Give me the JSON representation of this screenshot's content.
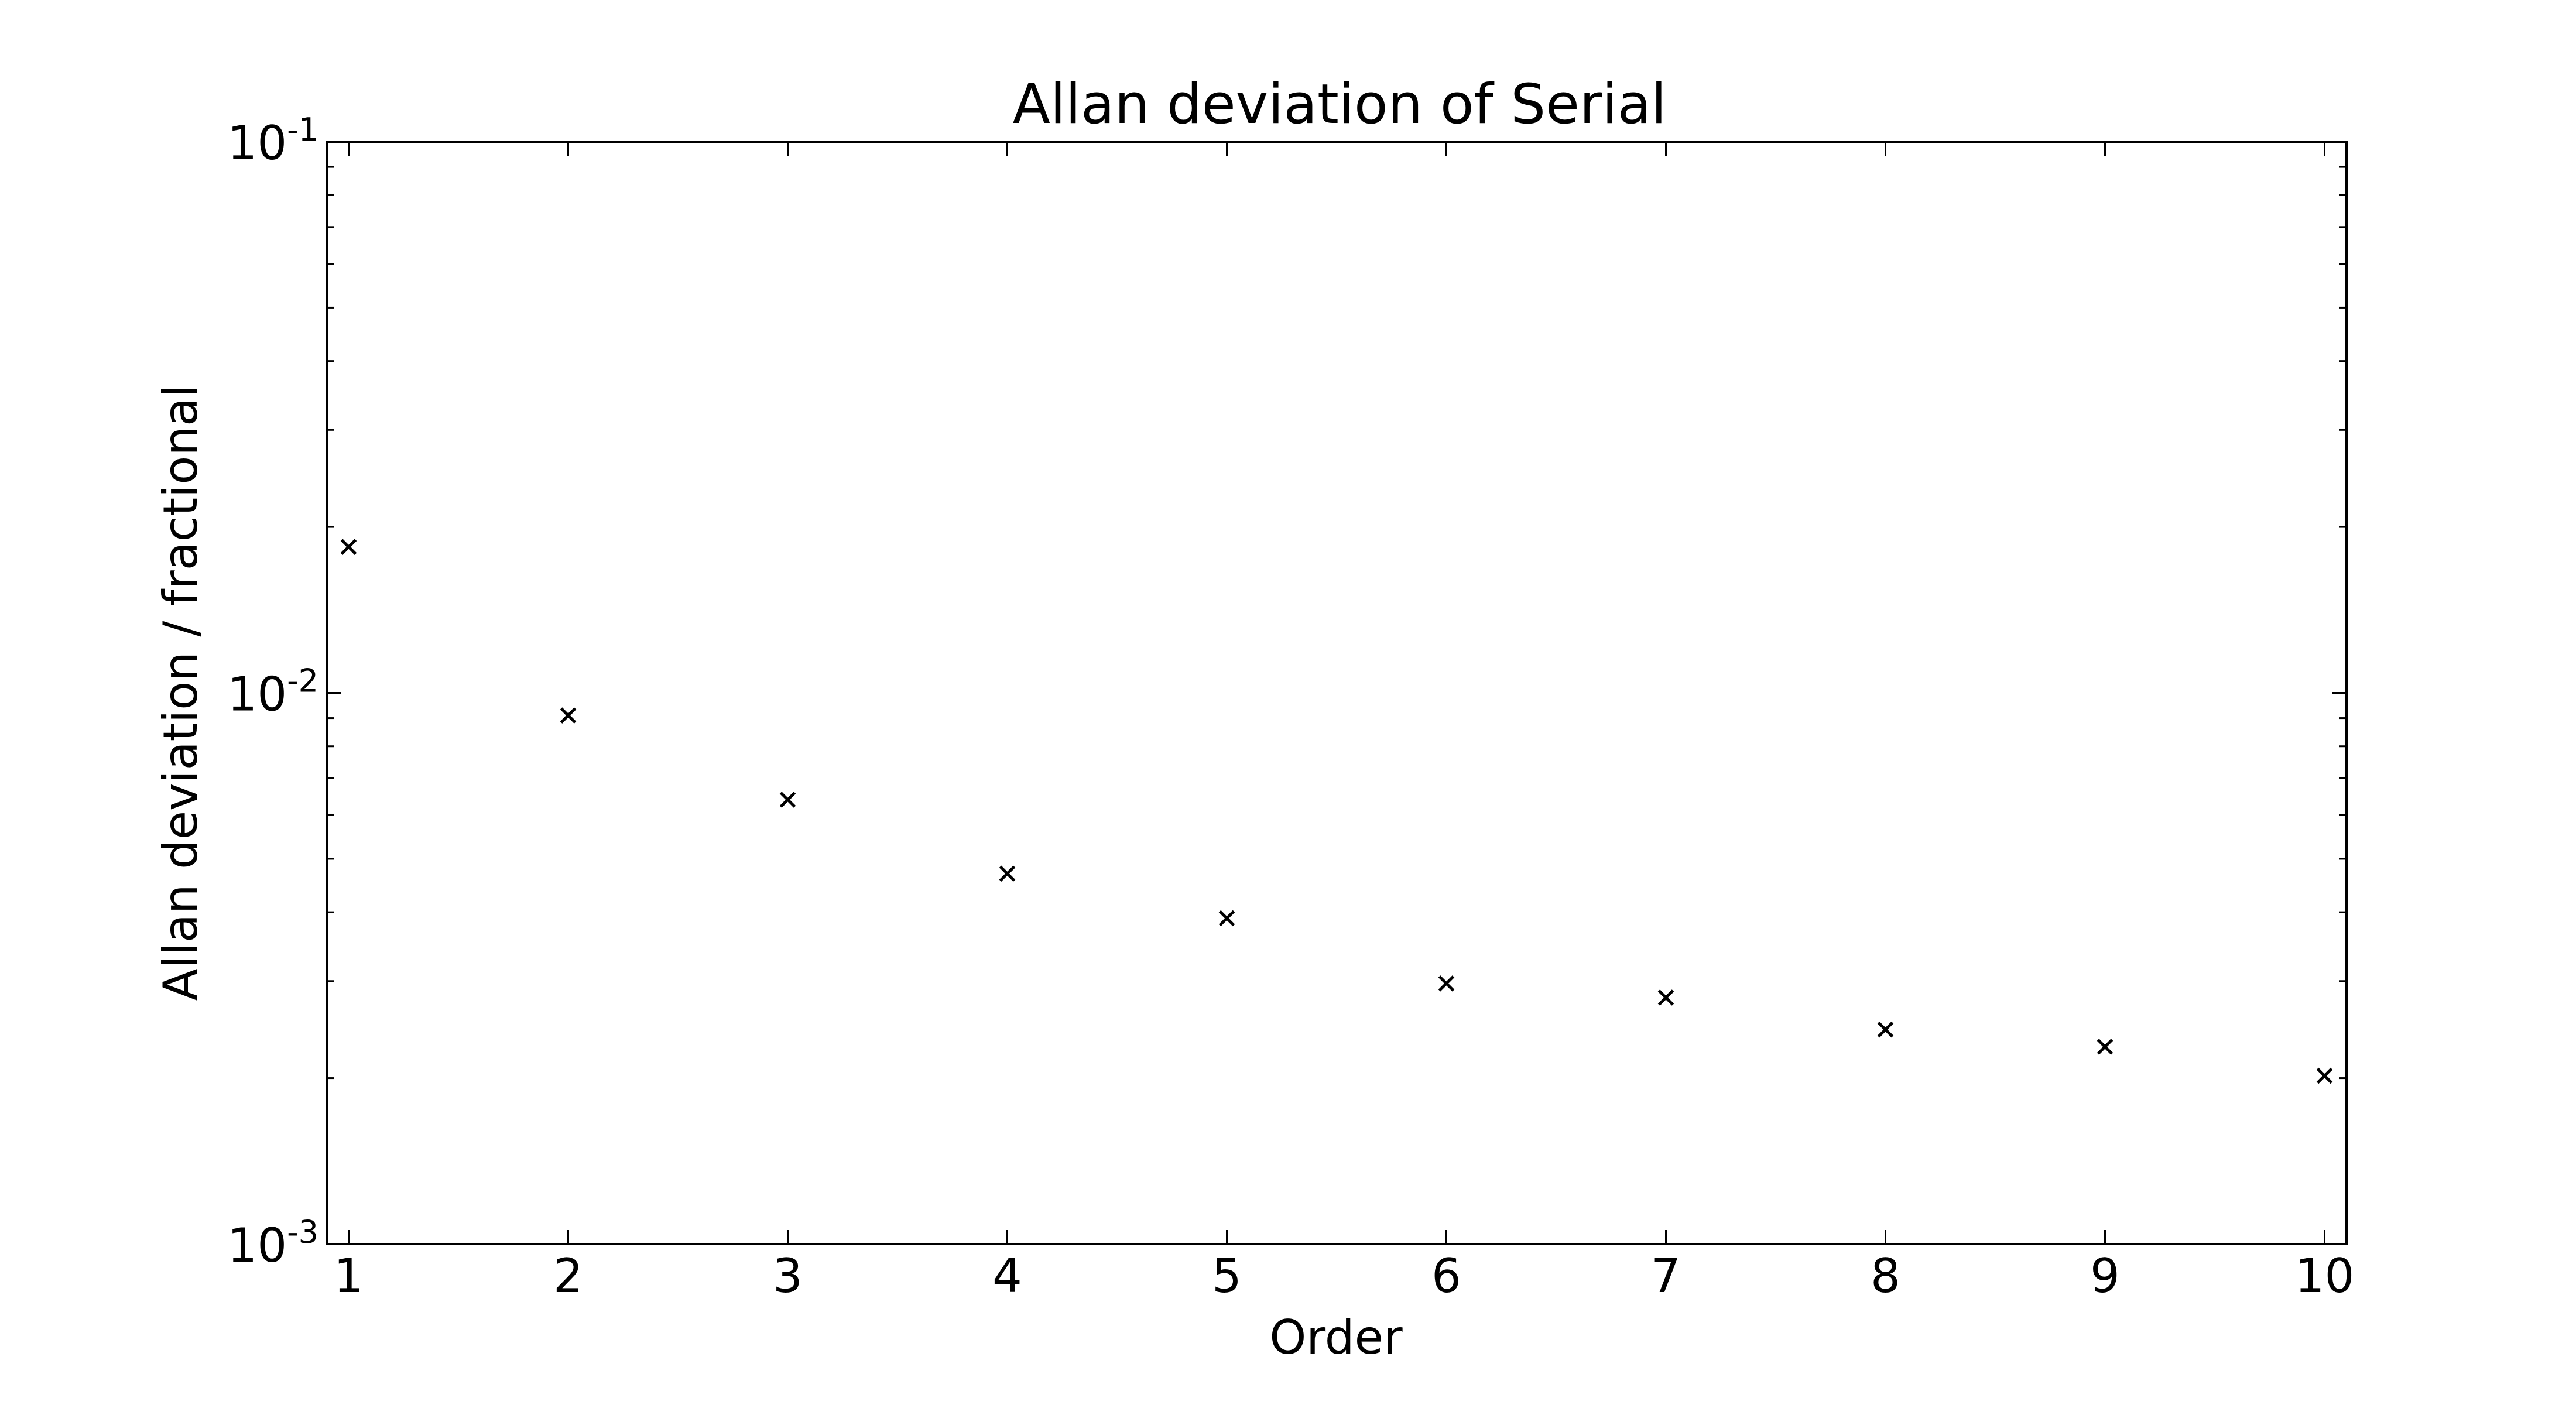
{
  "chart_data": {
    "type": "scatter",
    "title": "Allan deviation of Serial",
    "xlabel": "Order",
    "ylabel": "Allan deviation / fractional",
    "xlim": [
      0.9,
      10.1
    ],
    "ylim": [
      0.001,
      0.1
    ],
    "yscale": "log",
    "grid": false,
    "marker": "x",
    "marker_color": "#000000",
    "x_ticks": [
      1,
      2,
      3,
      4,
      5,
      6,
      7,
      8,
      9,
      10
    ],
    "x_tick_labels": [
      "1",
      "2",
      "3",
      "4",
      "5",
      "6",
      "7",
      "8",
      "9",
      "10"
    ],
    "y_ticks": [
      {
        "value": 0.1,
        "base": "10",
        "exp": "-1"
      },
      {
        "value": 0.01,
        "base": "10",
        "exp": "-2"
      },
      {
        "value": 0.001,
        "base": "10",
        "exp": "-3"
      }
    ],
    "series": [
      {
        "x": [
          1,
          2,
          3,
          4,
          5,
          6,
          7,
          8,
          9,
          10
        ],
        "y": [
          0.0184,
          0.0091,
          0.0064,
          0.0047,
          0.0039,
          0.00297,
          0.0028,
          0.00245,
          0.00228,
          0.00202
        ]
      }
    ]
  }
}
